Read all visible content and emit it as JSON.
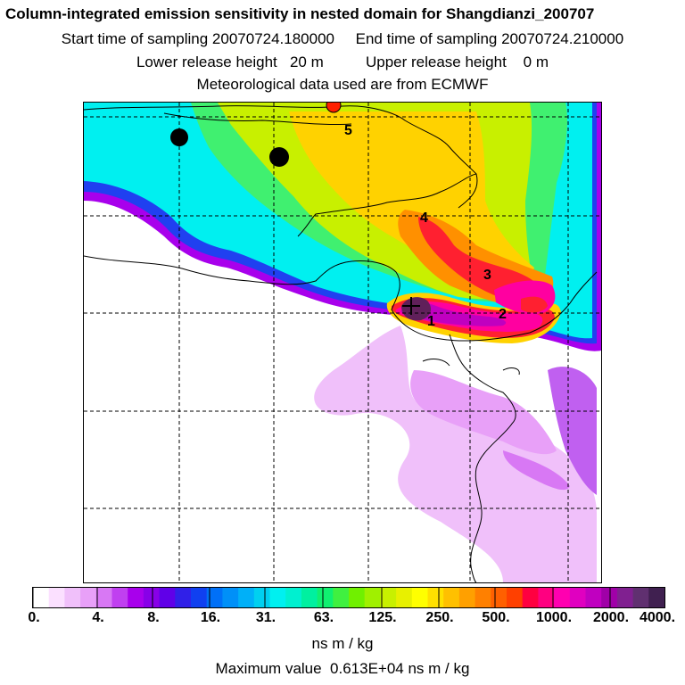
{
  "header": {
    "title": "Column-integrated emission sensitivity in nested domain for Shangdianzi_200707",
    "sampling": "Start time of sampling 20070724.180000     End time of sampling 20070724.210000",
    "release": "Lower release height   20 m          Upper release height    0 m",
    "met": "Meteorological data used are from ECMWF"
  },
  "map": {
    "markers": [
      {
        "label": "1"
      },
      {
        "label": "2"
      },
      {
        "label": "3"
      },
      {
        "label": "4"
      },
      {
        "label": "5"
      }
    ],
    "colors": {
      "cyan": "#00f0f0",
      "green": "#40f070",
      "yellow_green": "#c8f000",
      "yellow": "#ffd200",
      "orange": "#ff9000",
      "red": "#ff2030",
      "magenta": "#ff00a0",
      "purple": "#a000e0",
      "dark": "#60205a",
      "light_violet": "#e8a0f8"
    }
  },
  "colorbar": {
    "tick_labels": [
      "0.",
      "4.",
      "8.",
      "16.",
      "31.",
      "63.",
      "125.",
      "250.",
      "500.",
      "1000.",
      "2000.",
      "4000."
    ],
    "units": "ns m / kg",
    "colors": [
      "#ffffff",
      "#fbe0ff",
      "#f0c0fa",
      "#e8a0f8",
      "#d878f4",
      "#c040f0",
      "#a800ec",
      "#8800e8",
      "#6000e8",
      "#3020e8",
      "#1040f0",
      "#0070f8",
      "#0090f8",
      "#00b0f8",
      "#00d0f0",
      "#00f0f0",
      "#00f0d0",
      "#00f0a0",
      "#10f070",
      "#40f040",
      "#70f000",
      "#a0f000",
      "#c8f000",
      "#e8f000",
      "#ffff00",
      "#ffe000",
      "#ffc000",
      "#ffa000",
      "#ff8000",
      "#ff6000",
      "#ff4000",
      "#ff0040",
      "#ff0080",
      "#ff00b0",
      "#e000c0",
      "#c000c0",
      "#a000a8",
      "#802090",
      "#603070",
      "#402050"
    ]
  },
  "max_value": "Maximum value  0.613E+04 ns m / kg"
}
